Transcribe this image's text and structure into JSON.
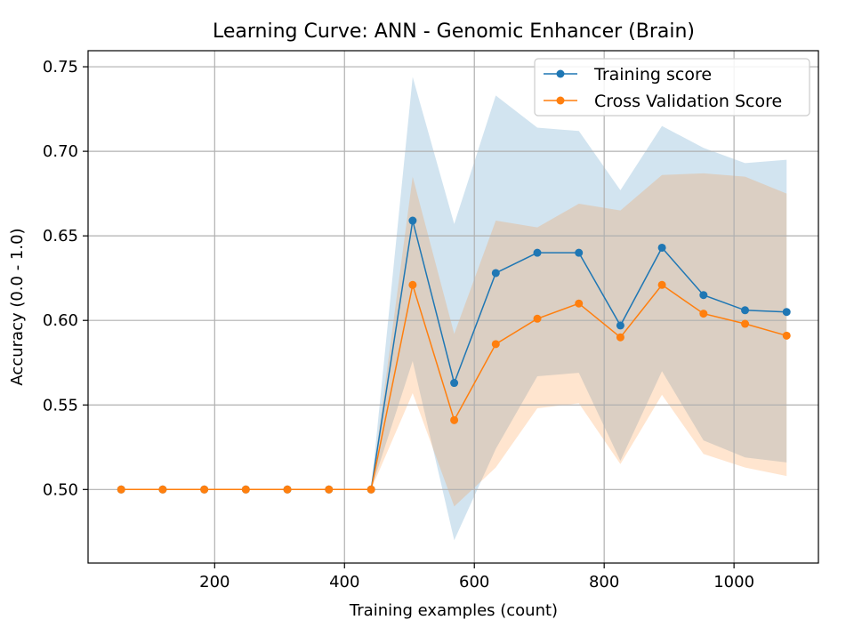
{
  "chart_data": {
    "type": "line",
    "title": "Learning Curve: ANN - Genomic Enhancer (Brain)",
    "xlabel": "Training examples (count)",
    "ylabel": "Accuracy (0.0 - 1.0)",
    "xlim": [
      5,
      1130
    ],
    "ylim": [
      0.4565,
      0.7595
    ],
    "xticks": [
      200,
      400,
      600,
      800,
      1000
    ],
    "xtick_labels": [
      "200",
      "400",
      "600",
      "800",
      "1000"
    ],
    "yticks": [
      0.5,
      0.55,
      0.6,
      0.65,
      0.7,
      0.75
    ],
    "ytick_labels": [
      "0.50",
      "0.55",
      "0.60",
      "0.65",
      "0.70",
      "0.75"
    ],
    "grid": true,
    "legend_position": "upper right",
    "x": [
      56,
      120,
      184,
      248,
      312,
      376,
      441,
      505,
      569,
      633,
      697,
      761,
      825,
      889,
      953,
      1017,
      1081
    ],
    "series": [
      {
        "name": "Training score",
        "color": "#1f77b4",
        "fill_color": "#1f77b4",
        "values": [
          0.5,
          0.5,
          0.5,
          0.5,
          0.5,
          0.5,
          0.5,
          0.659,
          0.563,
          0.628,
          0.64,
          0.64,
          0.597,
          0.643,
          0.615,
          0.606,
          0.605
        ],
        "band_upper": [
          0.5,
          0.5,
          0.5,
          0.5,
          0.5,
          0.5,
          0.5,
          0.744,
          0.657,
          0.733,
          0.714,
          0.712,
          0.677,
          0.715,
          0.702,
          0.693,
          0.695
        ],
        "band_lower": [
          0.5,
          0.5,
          0.5,
          0.5,
          0.5,
          0.5,
          0.5,
          0.576,
          0.47,
          0.524,
          0.567,
          0.569,
          0.517,
          0.57,
          0.529,
          0.519,
          0.516
        ]
      },
      {
        "name": "Cross Validation Score",
        "color": "#ff7f0e",
        "fill_color": "#ff7f0e",
        "values": [
          0.5,
          0.5,
          0.5,
          0.5,
          0.5,
          0.5,
          0.5,
          0.621,
          0.541,
          0.586,
          0.601,
          0.61,
          0.59,
          0.621,
          0.604,
          0.598,
          0.591
        ],
        "band_upper": [
          0.5,
          0.5,
          0.5,
          0.5,
          0.5,
          0.5,
          0.5,
          0.685,
          0.592,
          0.659,
          0.655,
          0.669,
          0.665,
          0.686,
          0.687,
          0.685,
          0.675
        ],
        "band_lower": [
          0.5,
          0.5,
          0.5,
          0.5,
          0.5,
          0.5,
          0.5,
          0.557,
          0.49,
          0.513,
          0.548,
          0.551,
          0.515,
          0.556,
          0.521,
          0.513,
          0.508
        ]
      }
    ]
  }
}
